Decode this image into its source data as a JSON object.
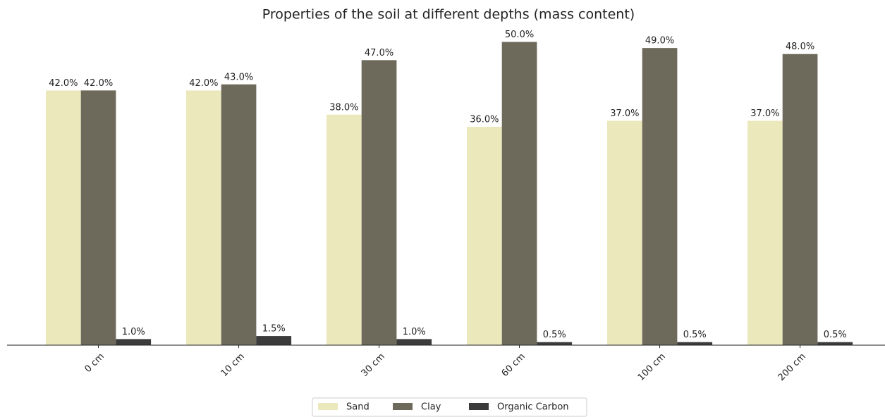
{
  "chart_data": {
    "type": "bar",
    "title": "Properties of the soil at different depths (mass content)",
    "categories": [
      "0 cm",
      "10 cm",
      "30 cm",
      "60 cm",
      "100 cm",
      "200 cm"
    ],
    "series": [
      {
        "name": "Sand",
        "color": "#ebe8bc",
        "values": [
          42,
          42,
          38,
          36,
          37,
          37
        ],
        "value_labels": [
          "42.0%",
          "42.0%",
          "38.0%",
          "36.0%",
          "37.0%",
          "37.0%"
        ]
      },
      {
        "name": "Clay",
        "color": "#6e6a5b",
        "values": [
          42,
          43,
          47,
          50,
          49,
          48
        ],
        "value_labels": [
          "42.0%",
          "43.0%",
          "47.0%",
          "50.0%",
          "49.0%",
          "48.0%"
        ]
      },
      {
        "name": "Organic Carbon",
        "color": "#3b3b3b",
        "values": [
          1,
          1.5,
          1,
          0.5,
          0.5,
          0.5
        ],
        "value_labels": [
          "1.0%",
          "1.5%",
          "1.0%",
          "0.5%",
          "0.5%",
          "0.5%"
        ]
      }
    ],
    "ylim": [
      0,
      52.5
    ],
    "legend": "bottom"
  }
}
